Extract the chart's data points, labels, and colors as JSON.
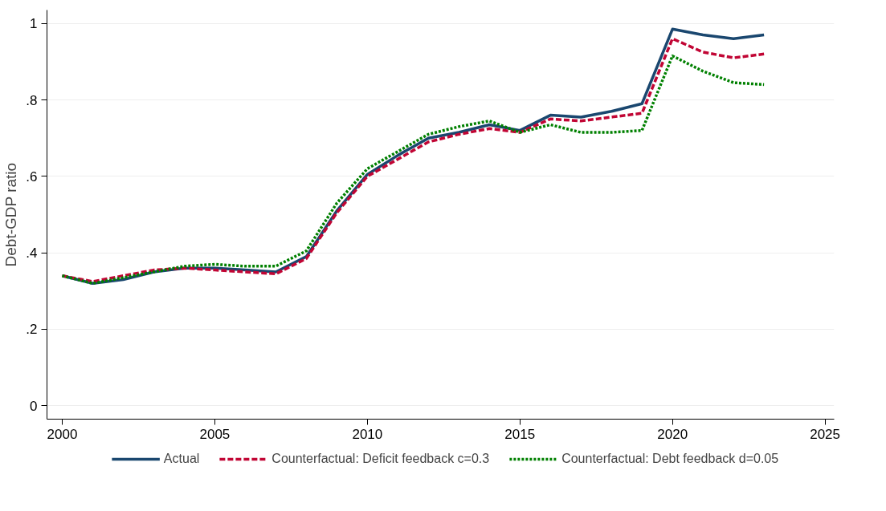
{
  "chart_data": {
    "type": "line",
    "ylabel": "Debt-GDP ratio",
    "x": [
      2000,
      2001,
      2002,
      2003,
      2004,
      2005,
      2006,
      2007,
      2008,
      2009,
      2010,
      2011,
      2012,
      2013,
      2014,
      2015,
      2016,
      2017,
      2018,
      2019,
      2020,
      2021,
      2022,
      2023
    ],
    "series": [
      {
        "name": "Actual",
        "color": "#1a476f",
        "line_style": "solid",
        "values": [
          0.34,
          0.32,
          0.33,
          0.35,
          0.36,
          0.36,
          0.355,
          0.35,
          0.39,
          0.51,
          0.605,
          0.655,
          0.7,
          0.715,
          0.735,
          0.72,
          0.76,
          0.755,
          0.77,
          0.79,
          0.985,
          0.97,
          0.96,
          0.97
        ]
      },
      {
        "name": "Counterfactual: Deficit feedback c=0.3",
        "color": "#c10534",
        "line_style": "dashed",
        "values": [
          0.34,
          0.325,
          0.34,
          0.355,
          0.36,
          0.355,
          0.35,
          0.345,
          0.385,
          0.505,
          0.6,
          0.645,
          0.69,
          0.71,
          0.725,
          0.715,
          0.75,
          0.745,
          0.755,
          0.765,
          0.96,
          0.925,
          0.91,
          0.92
        ]
      },
      {
        "name": "Counterfactual: Debt feedback d=0.05",
        "color": "#008000",
        "line_style": "dotted",
        "values": [
          0.34,
          0.32,
          0.335,
          0.35,
          0.365,
          0.37,
          0.365,
          0.365,
          0.405,
          0.53,
          0.62,
          0.665,
          0.71,
          0.73,
          0.745,
          0.715,
          0.735,
          0.715,
          0.715,
          0.72,
          0.915,
          0.875,
          0.845,
          0.84
        ]
      }
    ],
    "xlim": [
      1999.5,
      2025.3
    ],
    "xticks": [
      2000,
      2005,
      2010,
      2015,
      2020,
      2025
    ],
    "ylim": [
      -0.035,
      1.035
    ],
    "yticks": [
      {
        "value": 0,
        "label": "0"
      },
      {
        "value": 0.2,
        "label": ".2"
      },
      {
        "value": 0.4,
        "label": ".4"
      },
      {
        "value": 0.6,
        "label": ".6"
      },
      {
        "value": 0.8,
        "label": ".8"
      },
      {
        "value": 1,
        "label": "1"
      }
    ],
    "grid": "y",
    "legend": "bottom"
  }
}
